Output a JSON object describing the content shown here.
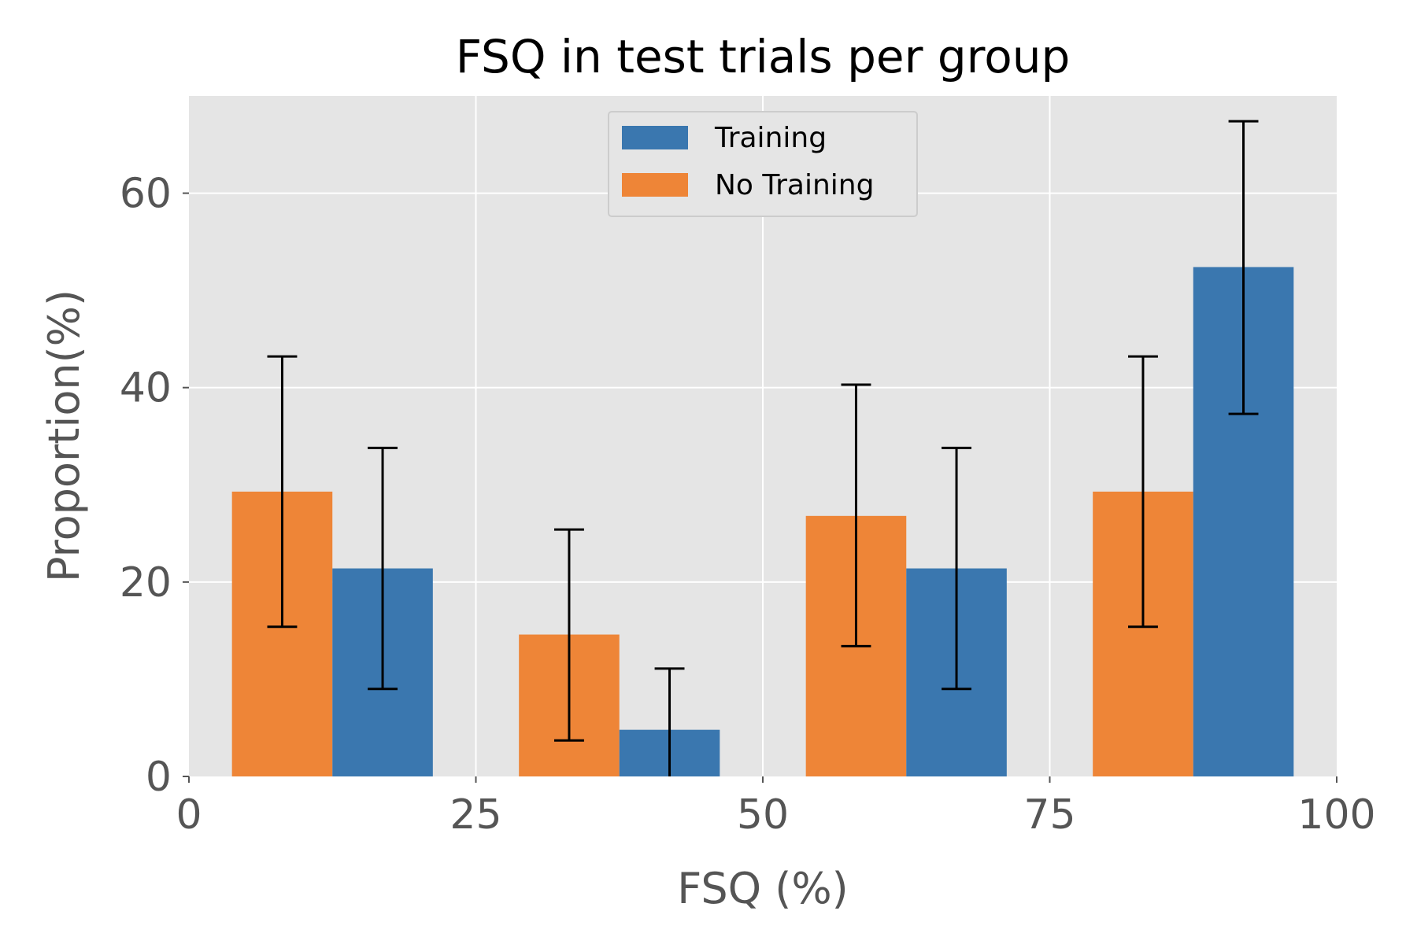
{
  "chart_data": {
    "type": "bar",
    "title": "FSQ in test trials per group",
    "xlabel": "FSQ (%)",
    "ylabel": "Proportion(%)",
    "xlim": [
      0,
      100
    ],
    "ylim": [
      0,
      70
    ],
    "xticks": [
      "0",
      "25",
      "50",
      "75",
      "100"
    ],
    "yticks": [
      "0",
      "20",
      "40",
      "60"
    ],
    "grid": true,
    "legend_position": "top-center",
    "bins": [
      {
        "start": 0,
        "end": 25
      },
      {
        "start": 25,
        "end": 50
      },
      {
        "start": 50,
        "end": 75
      },
      {
        "start": 75,
        "end": 100
      }
    ],
    "series": [
      {
        "name": "No Training",
        "color": "#EE8537",
        "values": [
          29.3,
          14.6,
          26.8,
          29.3
        ],
        "error_low": [
          15.4,
          3.7,
          13.4,
          15.4
        ],
        "error_high": [
          43.2,
          25.4,
          40.3,
          43.2
        ]
      },
      {
        "name": "Training",
        "color": "#3A77AF",
        "values": [
          21.4,
          4.8,
          21.4,
          52.4
        ],
        "error_low": [
          9.0,
          0.0,
          9.0,
          37.3
        ],
        "error_high": [
          33.8,
          11.1,
          33.8,
          67.4
        ]
      }
    ]
  }
}
